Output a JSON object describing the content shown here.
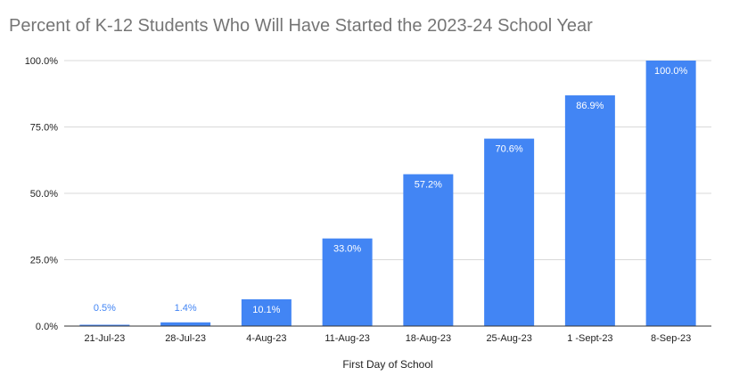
{
  "chart_data": {
    "type": "bar",
    "title": "Percent of K-12 Students Who Will Have Started the 2023-24 School Year",
    "xlabel": "First Day of School",
    "ylabel": "",
    "categories": [
      "21-Jul-23",
      "28-Jul-23",
      "4-Aug-23",
      "11-Aug-23",
      "18-Aug-23",
      "25-Aug-23",
      "1 -Sept-23",
      "8-Sep-23"
    ],
    "values": [
      0.5,
      1.4,
      10.1,
      33.0,
      57.2,
      70.6,
      86.9,
      100.0
    ],
    "data_labels": [
      "0.5%",
      "1.4%",
      "10.1%",
      "33.0%",
      "57.2%",
      "70.6%",
      "86.9%",
      "100.0%"
    ],
    "ylim": [
      0,
      100
    ],
    "yticks": [
      0,
      25,
      50,
      75,
      100
    ],
    "ytick_labels": [
      "0.0%",
      "25.0%",
      "50.0%",
      "75.0%",
      "100.0%"
    ],
    "grid": true,
    "legend": "none",
    "bar_color": "#4285f4",
    "inside_label_color": "#ffffff",
    "outside_label_color": "#4285f4",
    "grid_color": "#d9d9d9",
    "axis_color": "#333333"
  }
}
